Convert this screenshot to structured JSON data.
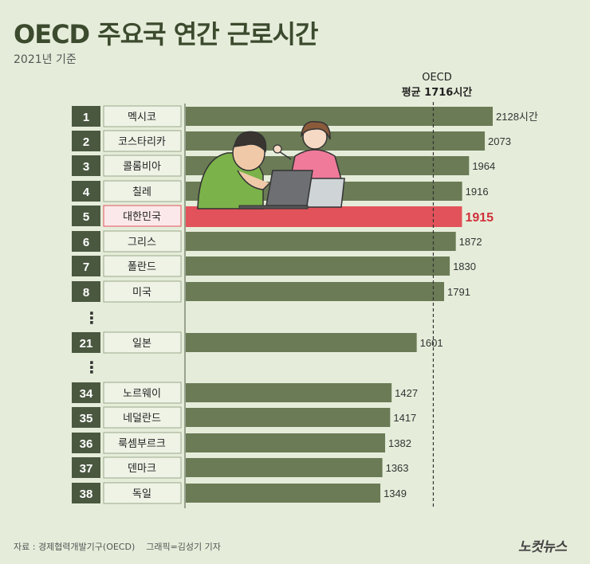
{
  "title": "OECD 주요국 연간 근로시간",
  "subtitle": "2021년 기준",
  "average": {
    "label_top": "OECD",
    "label_bottom": "평균 1716시간",
    "value": 1716
  },
  "gap_marker": "⋮",
  "footer": {
    "source": "자료 : 경제협력개발기구(OECD)    그래픽=김성기 기자",
    "logo": "노컷뉴스"
  },
  "colors": {
    "bar": "#6b7b56",
    "highlight_bar": "#e2525a",
    "highlight_text": "#d12f3a",
    "rank_box": "#4a5840",
    "name_box": "#eef3e6"
  },
  "chart_data": {
    "type": "bar",
    "orientation": "horizontal",
    "unit": "시간",
    "highlight": "대한민국",
    "reference_line": 1716,
    "ranks": [
      "1",
      "2",
      "3",
      "4",
      "5",
      "6",
      "7",
      "8",
      "21",
      "34",
      "35",
      "36",
      "37",
      "38"
    ],
    "categories": [
      "멕시코",
      "코스타리카",
      "콜롬비아",
      "칠레",
      "대한민국",
      "그리스",
      "폴란드",
      "미국",
      "일본",
      "노르웨이",
      "네덜란드",
      "룩셈부르크",
      "덴마크",
      "독일"
    ],
    "values": [
      2128,
      2073,
      1964,
      1916,
      1915,
      1872,
      1830,
      1791,
      1601,
      1427,
      1417,
      1382,
      1363,
      1349
    ],
    "value_labels": [
      "2128시간",
      "2073",
      "1964",
      "1916",
      "1915",
      "1872",
      "1830",
      "1791",
      "1601",
      "1427",
      "1417",
      "1382",
      "1363",
      "1349"
    ]
  }
}
